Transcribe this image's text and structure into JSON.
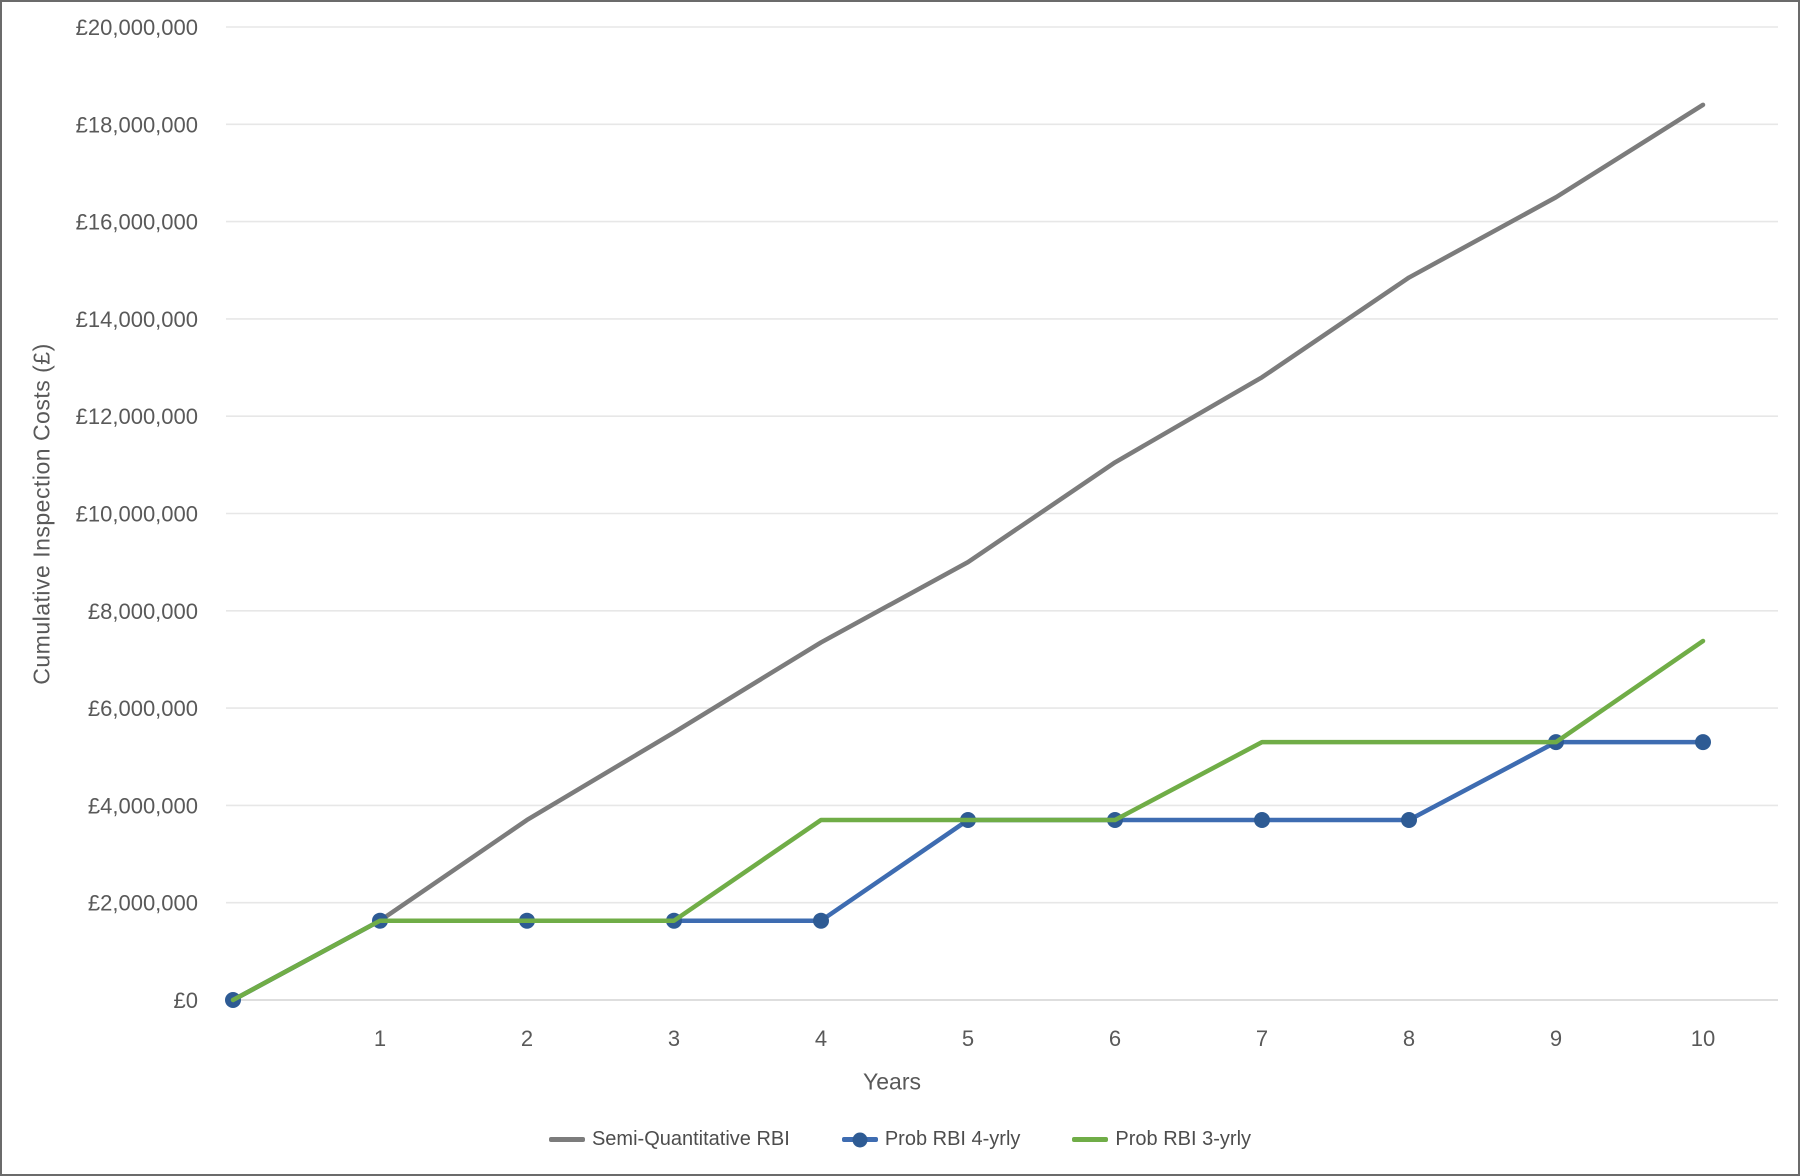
{
  "chart_data": {
    "type": "line",
    "title": "",
    "xlabel": "Years",
    "ylabel": "Cumulative Inspection Costs (£)",
    "x": [
      0,
      1,
      2,
      3,
      4,
      5,
      6,
      7,
      8,
      9,
      10
    ],
    "x_tick_labels": [
      "1",
      "2",
      "3",
      "4",
      "5",
      "6",
      "7",
      "8",
      "9",
      "10"
    ],
    "y_tick_values": [
      0,
      2000000,
      4000000,
      6000000,
      8000000,
      10000000,
      12000000,
      14000000,
      16000000,
      18000000,
      20000000
    ],
    "y_tick_labels": [
      "£0",
      "£2,000,000",
      "£4,000,000",
      "£6,000,000",
      "£8,000,000",
      "£10,000,000",
      "£12,000,000",
      "£14,000,000",
      "£16,000,000",
      "£18,000,000",
      "£20,000,000"
    ],
    "xlim": [
      0,
      10
    ],
    "ylim": [
      0,
      20000000
    ],
    "grid": "horizontal",
    "legend_position": "bottom",
    "series": [
      {
        "name": "Semi-Quantitative RBI",
        "color": "#7c7c7c",
        "marker": false,
        "values": [
          0,
          1630000,
          3700000,
          5500000,
          7350000,
          9000000,
          11050000,
          12800000,
          14850000,
          16500000,
          18400000
        ]
      },
      {
        "name": "Prob RBI 4-yrly",
        "color": "#3e6cb1",
        "marker": true,
        "marker_color": "#2e5b94",
        "values": [
          0,
          1630000,
          1630000,
          1630000,
          1630000,
          3700000,
          3700000,
          3700000,
          3700000,
          5300000,
          5300000
        ]
      },
      {
        "name": "Prob RBI 3-yrly",
        "color": "#70ad47",
        "marker": false,
        "values": [
          0,
          1630000,
          1630000,
          1630000,
          3700000,
          3700000,
          3700000,
          5300000,
          5300000,
          5300000,
          7380000
        ]
      }
    ]
  },
  "colors": {
    "axis_text": "#595959",
    "gridline": "#e7e7e7",
    "zero_axis_line": "#d4d4d4",
    "background": "#ffffff"
  }
}
